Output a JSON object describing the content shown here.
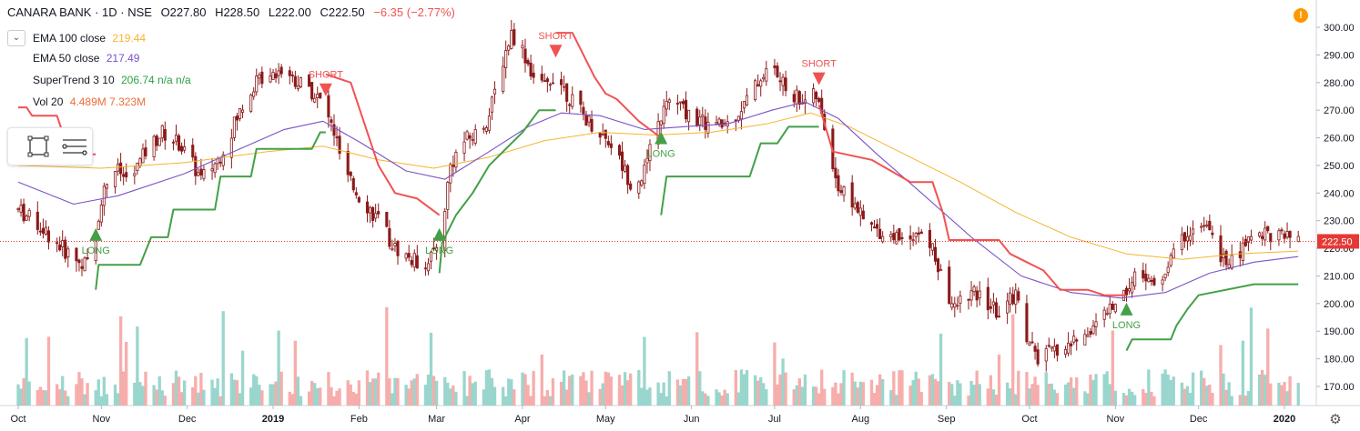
{
  "header": {
    "symbol": "CANARA BANK · 1D · NSE",
    "open": "O227.80",
    "high": "H228.50",
    "low": "L222.00",
    "close": "C222.50",
    "change": "−6.35 (−2.77%)"
  },
  "indicators": [
    {
      "label": "EMA 100 close",
      "values": "219.44",
      "color": "#f5b42f"
    },
    {
      "label": "EMA 50 close",
      "values": "217.49",
      "color": "#7b52c9"
    },
    {
      "label": "SuperTrend 3 10",
      "values": "206.74 n/a n/a",
      "color": "#2e9e44"
    },
    {
      "label": "Vol 20",
      "values": "4.489M 7.323M",
      "color": "#ef6c3a"
    }
  ],
  "colors": {
    "up": "#26a69a",
    "down": "#ef5350",
    "candle": "#8b1a1a",
    "supertrend_up": "#43a047",
    "supertrend_down": "#f05252",
    "ema100": "#f5b42f",
    "ema50": "#7b52c9",
    "vol_up": "#8fd1c8",
    "vol_down": "#f5a5a3",
    "last_price": "#e53935"
  },
  "chart_data": {
    "type": "candlestick",
    "y_ticks": [
      "300.00",
      "290.00",
      "280.00",
      "270.00",
      "260.00",
      "250.00",
      "240.00",
      "230.00",
      "220.00",
      "210.00",
      "200.00",
      "190.00",
      "180.00",
      "170.00"
    ],
    "ylim": [
      165,
      303
    ],
    "x_ticks": [
      "Oct",
      "Nov",
      "Dec",
      "2019",
      "Feb",
      "Mar",
      "Apr",
      "May",
      "Jun",
      "Jul",
      "Aug",
      "Sep",
      "Oct",
      "Nov",
      "Dec",
      "2020"
    ],
    "x_tick_days": [
      0,
      30,
      61,
      92,
      123,
      151,
      182,
      212,
      243,
      273,
      304,
      335,
      365,
      396,
      426,
      457
    ],
    "last_price": "222.50",
    "signals": [
      {
        "text": "LONG",
        "day": 28,
        "price": 226,
        "kind": "long"
      },
      {
        "text": "SHORT",
        "day": 111,
        "price": 281,
        "kind": "short"
      },
      {
        "text": "LONG",
        "day": 152,
        "price": 226,
        "kind": "long"
      },
      {
        "text": "SHORT",
        "day": 194,
        "price": 295,
        "kind": "short"
      },
      {
        "text": "LONG",
        "day": 232,
        "price": 261,
        "kind": "long"
      },
      {
        "text": "SHORT",
        "day": 289,
        "price": 285,
        "kind": "short"
      },
      {
        "text": "LONG",
        "day": 400,
        "price": 199,
        "kind": "long"
      }
    ],
    "price_path": [
      [
        0,
        234
      ],
      [
        8,
        228
      ],
      [
        16,
        220
      ],
      [
        22,
        215
      ],
      [
        26,
        214
      ],
      [
        30,
        238
      ],
      [
        34,
        250
      ],
      [
        40,
        244
      ],
      [
        46,
        255
      ],
      [
        52,
        262
      ],
      [
        58,
        258
      ],
      [
        62,
        252
      ],
      [
        66,
        245
      ],
      [
        72,
        252
      ],
      [
        78,
        265
      ],
      [
        84,
        278
      ],
      [
        90,
        284
      ],
      [
        96,
        285
      ],
      [
        100,
        281
      ],
      [
        106,
        277
      ],
      [
        110,
        272
      ],
      [
        114,
        262
      ],
      [
        118,
        246
      ],
      [
        124,
        238
      ],
      [
        130,
        230
      ],
      [
        136,
        220
      ],
      [
        142,
        216
      ],
      [
        146,
        214
      ],
      [
        152,
        221
      ],
      [
        156,
        250
      ],
      [
        160,
        258
      ],
      [
        166,
        262
      ],
      [
        170,
        268
      ],
      [
        174,
        285
      ],
      [
        178,
        298
      ],
      [
        182,
        292
      ],
      [
        186,
        282
      ],
      [
        190,
        278
      ],
      [
        194,
        284
      ],
      [
        198,
        276
      ],
      [
        204,
        268
      ],
      [
        210,
        262
      ],
      [
        214,
        258
      ],
      [
        218,
        250
      ],
      [
        222,
        242
      ],
      [
        226,
        248
      ],
      [
        232,
        268
      ],
      [
        236,
        275
      ],
      [
        240,
        270
      ],
      [
        246,
        266
      ],
      [
        252,
        264
      ],
      [
        256,
        265
      ],
      [
        262,
        272
      ],
      [
        268,
        282
      ],
      [
        272,
        286
      ],
      [
        276,
        279
      ],
      [
        282,
        274
      ],
      [
        288,
        275
      ],
      [
        292,
        260
      ],
      [
        296,
        242
      ],
      [
        302,
        236
      ],
      [
        306,
        228
      ],
      [
        312,
        226
      ],
      [
        318,
        224
      ],
      [
        324,
        226
      ],
      [
        330,
        220
      ],
      [
        334,
        206
      ],
      [
        338,
        198
      ],
      [
        342,
        204
      ],
      [
        348,
        202
      ],
      [
        354,
        196
      ],
      [
        360,
        204
      ],
      [
        364,
        188
      ],
      [
        368,
        180
      ],
      [
        372,
        182
      ],
      [
        378,
        184
      ],
      [
        384,
        188
      ],
      [
        390,
        194
      ],
      [
        396,
        200
      ],
      [
        402,
        208
      ],
      [
        406,
        212
      ],
      [
        410,
        205
      ],
      [
        414,
        212
      ],
      [
        418,
        220
      ],
      [
        422,
        226
      ],
      [
        428,
        228
      ],
      [
        432,
        222
      ],
      [
        436,
        214
      ],
      [
        440,
        216
      ],
      [
        444,
        224
      ],
      [
        450,
        226
      ],
      [
        456,
        224
      ],
      [
        462,
        222
      ]
    ],
    "ema50": [
      [
        0,
        244
      ],
      [
        20,
        236
      ],
      [
        36,
        239
      ],
      [
        60,
        247
      ],
      [
        80,
        256
      ],
      [
        96,
        263
      ],
      [
        110,
        266
      ],
      [
        124,
        258
      ],
      [
        140,
        248
      ],
      [
        154,
        245
      ],
      [
        170,
        255
      ],
      [
        184,
        264
      ],
      [
        196,
        269
      ],
      [
        210,
        268
      ],
      [
        226,
        263
      ],
      [
        240,
        264
      ],
      [
        256,
        265
      ],
      [
        272,
        270
      ],
      [
        284,
        273
      ],
      [
        296,
        267
      ],
      [
        310,
        254
      ],
      [
        326,
        240
      ],
      [
        344,
        224
      ],
      [
        362,
        210
      ],
      [
        380,
        204
      ],
      [
        398,
        202
      ],
      [
        414,
        204
      ],
      [
        430,
        211
      ],
      [
        446,
        215
      ],
      [
        462,
        217
      ]
    ],
    "ema100": [
      [
        0,
        250
      ],
      [
        30,
        249
      ],
      [
        60,
        251
      ],
      [
        90,
        255
      ],
      [
        110,
        257
      ],
      [
        130,
        252
      ],
      [
        150,
        249
      ],
      [
        170,
        253
      ],
      [
        190,
        259
      ],
      [
        210,
        262
      ],
      [
        230,
        261
      ],
      [
        250,
        262
      ],
      [
        270,
        265
      ],
      [
        286,
        269
      ],
      [
        300,
        264
      ],
      [
        320,
        254
      ],
      [
        340,
        244
      ],
      [
        360,
        233
      ],
      [
        380,
        224
      ],
      [
        400,
        218
      ],
      [
        420,
        216
      ],
      [
        440,
        218
      ],
      [
        462,
        219
      ]
    ],
    "supertrend": [
      {
        "kind": "down",
        "points": [
          [
            0,
            271
          ],
          [
            3,
            271
          ],
          [
            5,
            268
          ],
          [
            14,
            268
          ],
          [
            16,
            262
          ],
          [
            24,
            262
          ],
          [
            26,
            254
          ],
          [
            28,
            254
          ]
        ]
      },
      {
        "kind": "up",
        "points": [
          [
            28,
            205
          ],
          [
            29,
            214
          ],
          [
            44,
            214
          ],
          [
            48,
            224
          ],
          [
            54,
            224
          ],
          [
            56,
            234
          ],
          [
            71,
            234
          ],
          [
            73,
            246
          ],
          [
            84,
            246
          ],
          [
            86,
            256
          ],
          [
            106,
            256
          ],
          [
            109,
            262
          ],
          [
            111,
            262
          ]
        ]
      },
      {
        "kind": "down",
        "points": [
          [
            111,
            283
          ],
          [
            120,
            280
          ],
          [
            124,
            268
          ],
          [
            130,
            250
          ],
          [
            136,
            240
          ],
          [
            144,
            238
          ],
          [
            152,
            232
          ]
        ]
      },
      {
        "kind": "up",
        "points": [
          [
            152,
            211
          ],
          [
            153,
            222
          ],
          [
            158,
            232
          ],
          [
            164,
            240
          ],
          [
            170,
            250
          ],
          [
            176,
            256
          ],
          [
            182,
            262
          ],
          [
            188,
            270
          ],
          [
            194,
            270
          ]
        ]
      },
      {
        "kind": "down",
        "points": [
          [
            194,
            298
          ],
          [
            200,
            298
          ],
          [
            208,
            282
          ],
          [
            212,
            276
          ],
          [
            216,
            274
          ],
          [
            224,
            266
          ],
          [
            232,
            260
          ]
        ]
      },
      {
        "kind": "up",
        "points": [
          [
            232,
            232
          ],
          [
            234,
            246
          ],
          [
            264,
            246
          ],
          [
            268,
            258
          ],
          [
            274,
            258
          ],
          [
            278,
            264
          ],
          [
            289,
            264
          ]
        ]
      },
      {
        "kind": "down",
        "points": [
          [
            289,
            272
          ],
          [
            294,
            255
          ],
          [
            308,
            252
          ],
          [
            322,
            244
          ],
          [
            330,
            244
          ],
          [
            334,
            232
          ],
          [
            336,
            223
          ],
          [
            354,
            223
          ],
          [
            358,
            218
          ],
          [
            364,
            215
          ],
          [
            370,
            212
          ],
          [
            376,
            205
          ],
          [
            386,
            205
          ],
          [
            392,
            203
          ],
          [
            400,
            203
          ]
        ]
      },
      {
        "kind": "up",
        "points": [
          [
            400,
            183
          ],
          [
            402,
            187
          ],
          [
            416,
            187
          ],
          [
            418,
            192
          ],
          [
            422,
            198
          ],
          [
            426,
            203
          ],
          [
            446,
            207
          ],
          [
            462,
            207
          ]
        ]
      }
    ],
    "volume_note": "volume bars shown along bottom, colored by candle direction"
  }
}
